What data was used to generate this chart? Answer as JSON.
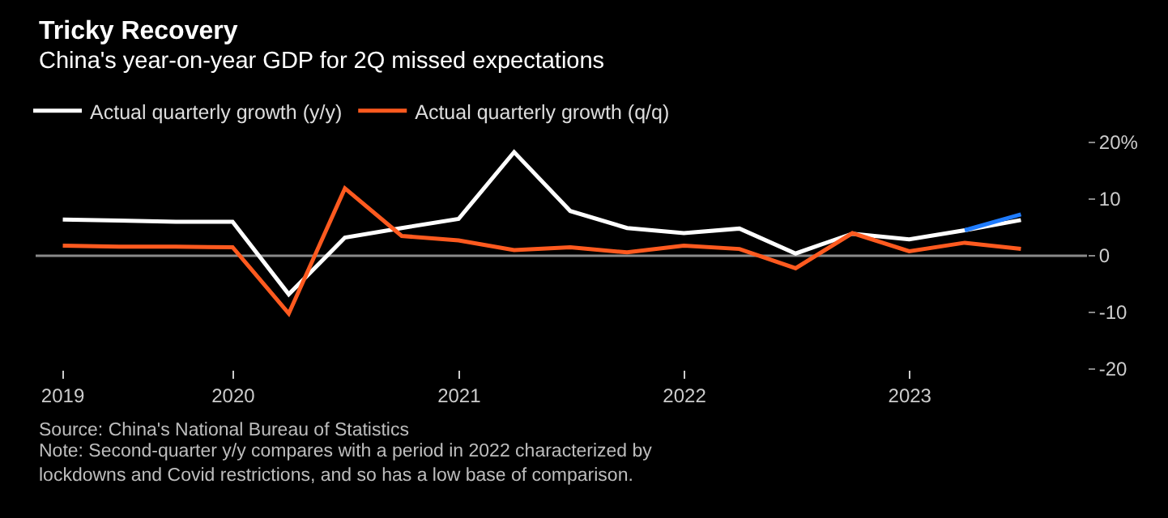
{
  "chart_data": {
    "type": "line",
    "title": "Tricky Recovery",
    "subtitle": "China's year-on-year GDP for 2Q missed expectations",
    "x": [
      "2019-03-31",
      "2019-06-30",
      "2019-09-30",
      "2019-12-31",
      "2020-03-31",
      "2020-06-30",
      "2020-09-30",
      "2020-12-31",
      "2021-03-31",
      "2021-06-30",
      "2021-09-30",
      "2021-12-31",
      "2022-03-31",
      "2022-06-30",
      "2022-09-30",
      "2022-12-31",
      "2023-03-31",
      "2023-06-30"
    ],
    "series": [
      {
        "name": "Actual quarterly growth (y/y)",
        "color": "#ffffff",
        "values": [
          6.4,
          6.2,
          6.0,
          6.0,
          -6.8,
          3.2,
          4.9,
          6.5,
          18.3,
          7.9,
          4.9,
          4.0,
          4.8,
          0.4,
          3.9,
          2.9,
          4.5,
          6.3
        ]
      },
      {
        "name": "Actual quarterly growth (q/q)",
        "color": "#ff5a1f",
        "values": [
          1.8,
          1.6,
          1.6,
          1.5,
          -10.2,
          11.9,
          3.5,
          2.7,
          1.0,
          1.5,
          0.6,
          1.8,
          1.2,
          -2.2,
          4.0,
          0.8,
          2.3,
          1.2
        ]
      },
      {
        "color": "#1f7cff",
        "x": [
          "2023-03-31",
          "2023-06-30"
        ],
        "values": [
          4.5,
          7.3
        ]
      }
    ],
    "xlim": [
      "2019-02-15",
      "2023-10-15"
    ],
    "xticks": [
      {
        "value": "2019-03-31",
        "label": "2019"
      },
      {
        "value": "2020-01-01",
        "label": "2020"
      },
      {
        "value": "2021-01-01",
        "label": "2021"
      },
      {
        "value": "2022-01-01",
        "label": "2022"
      },
      {
        "value": "2023-01-01",
        "label": "2023"
      }
    ],
    "ylim": [
      -20,
      20
    ],
    "yticks": [
      {
        "value": -20,
        "label": "-20"
      },
      {
        "value": -10,
        "label": "-10"
      },
      {
        "value": 0,
        "label": "0"
      },
      {
        "value": 10,
        "label": "10"
      },
      {
        "value": 20,
        "label": "20%"
      }
    ],
    "ref_lines": [
      {
        "axis": "y",
        "value": 0,
        "color": "#8a8a8a"
      }
    ],
    "grid": false,
    "legend": "top left",
    "marker": "none",
    "line_style": "solid",
    "annotations": [
      "Source: China's National Bureau of Statistics",
      "Note: Second-quarter y/y compares with a period in 2022 characterized by lockdowns and Covid restrictions, and so has a low base of comparison."
    ]
  }
}
